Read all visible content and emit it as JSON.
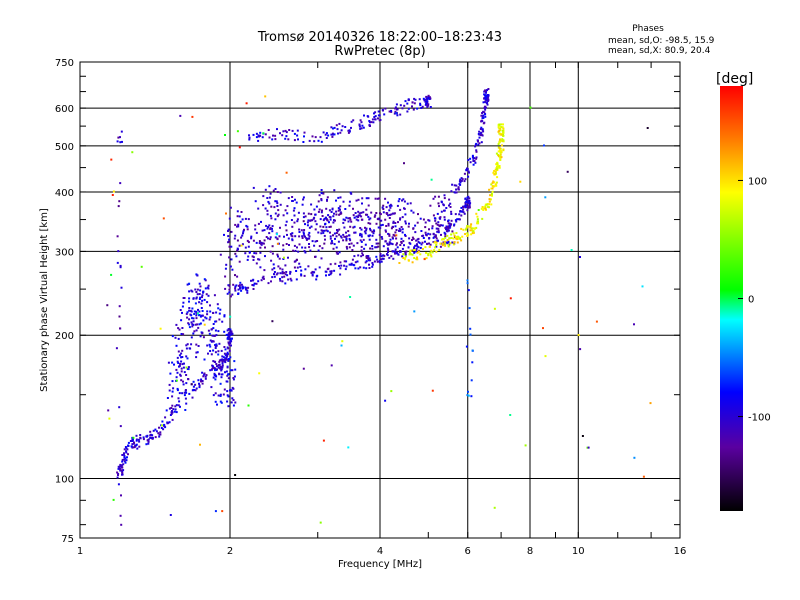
{
  "chart_data": {
    "type": "scatter",
    "title": "Tromsø 20140326 18:22:00–18:23:43",
    "subtitle": "RwPretec (8p)",
    "xlabel": "Frequency [MHz]",
    "ylabel": "Stationary phase Virtual Height [km]",
    "x_scale": "log",
    "y_scale": "log",
    "xlim": [
      1,
      16
    ],
    "ylim": [
      75,
      750
    ],
    "x_ticks": [
      1,
      2,
      4,
      6,
      8,
      10,
      16
    ],
    "x_tick_labels": [
      "1",
      "2",
      "4",
      "6",
      "8",
      "10",
      "16"
    ],
    "y_ticks": [
      75,
      100,
      200,
      300,
      400,
      500,
      600,
      750
    ],
    "y_tick_labels": [
      "75",
      "100",
      "200",
      "300",
      "400",
      "500",
      "600",
      "750"
    ],
    "grid": true,
    "stats": {
      "header": "Phases",
      "line1": "mean, sd,O: -98.5, 15.9",
      "line2": "mean, sd,X:  80.9, 20.4"
    },
    "colorbar": {
      "label": "[deg]",
      "range": [
        -180,
        180
      ],
      "ticks": [
        100,
        0,
        -100
      ],
      "tick_labels": [
        "100",
        "0",
        "-100"
      ]
    },
    "traces": [
      {
        "kind": "o_low",
        "phase": -100,
        "points": [
          [
            1.19,
            100
          ],
          [
            1.22,
            108
          ],
          [
            1.25,
            118
          ],
          [
            1.3,
            119
          ],
          [
            1.38,
            122
          ],
          [
            1.48,
            130
          ],
          [
            1.6,
            145
          ],
          [
            1.75,
            160
          ],
          [
            1.88,
            170
          ],
          [
            1.97,
            180
          ],
          [
            2.0,
            200
          ]
        ]
      },
      {
        "kind": "o_spread_low",
        "phase": -95,
        "points": [
          [
            1.55,
            145
          ],
          [
            1.6,
            175
          ],
          [
            1.65,
            200
          ],
          [
            1.7,
            230
          ],
          [
            1.75,
            240
          ],
          [
            1.82,
            210
          ],
          [
            1.9,
            190
          ],
          [
            1.95,
            160
          ]
        ]
      },
      {
        "kind": "o_f",
        "phase": -100,
        "points": [
          [
            1.97,
            247
          ],
          [
            2.1,
            250
          ],
          [
            2.3,
            258
          ],
          [
            2.6,
            264
          ],
          [
            3.0,
            270
          ],
          [
            3.4,
            278
          ],
          [
            3.8,
            285
          ],
          [
            4.2,
            295
          ],
          [
            4.6,
            305
          ],
          [
            5.0,
            318
          ],
          [
            5.4,
            335
          ],
          [
            5.8,
            360
          ],
          [
            6.0,
            380
          ]
        ]
      },
      {
        "kind": "o_spread_f",
        "phase": -110,
        "points": [
          [
            2.0,
            290
          ],
          [
            2.1,
            330
          ],
          [
            2.3,
            310
          ],
          [
            2.6,
            300
          ],
          [
            2.9,
            320
          ],
          [
            3.2,
            335
          ],
          [
            3.5,
            330
          ],
          [
            3.8,
            320
          ],
          [
            4.2,
            330
          ],
          [
            4.8,
            340
          ],
          [
            5.4,
            350
          ]
        ]
      },
      {
        "kind": "x_f",
        "phase": 90,
        "points": [
          [
            4.4,
            290
          ],
          [
            4.8,
            296
          ],
          [
            5.2,
            305
          ],
          [
            5.6,
            318
          ],
          [
            6.0,
            330
          ],
          [
            6.3,
            350
          ],
          [
            6.6,
            380
          ],
          [
            6.8,
            420
          ],
          [
            6.9,
            460
          ],
          [
            7.0,
            500
          ],
          [
            7.0,
            540
          ]
        ]
      },
      {
        "kind": "o_upper",
        "phase": -100,
        "points": [
          [
            2.15,
            515
          ],
          [
            2.5,
            530
          ],
          [
            3.0,
            520
          ],
          [
            3.4,
            545
          ],
          [
            3.8,
            565
          ],
          [
            4.2,
            590
          ],
          [
            4.6,
            610
          ],
          [
            5.0,
            620
          ]
        ]
      },
      {
        "kind": "o_cusp",
        "phase": -100,
        "points": [
          [
            5.6,
            400
          ],
          [
            5.9,
            430
          ],
          [
            6.2,
            470
          ],
          [
            6.4,
            540
          ],
          [
            6.5,
            600
          ],
          [
            6.55,
            640
          ]
        ]
      },
      {
        "kind": "o_spread_f2",
        "phase": -105,
        "points": [
          [
            2.3,
            370
          ],
          [
            2.5,
            350
          ],
          [
            2.8,
            340
          ],
          [
            3.1,
            360
          ],
          [
            3.4,
            355
          ],
          [
            3.8,
            345
          ],
          [
            4.3,
            345
          ]
        ]
      },
      {
        "kind": "noise_column_low",
        "phase": -110,
        "points": [
          [
            1.2,
            75
          ],
          [
            1.2,
            95
          ],
          [
            1.2,
            130
          ],
          [
            1.2,
            200
          ],
          [
            1.2,
            230
          ],
          [
            1.2,
            280
          ],
          [
            1.2,
            350
          ],
          [
            1.2,
            490
          ],
          [
            1.2,
            525
          ]
        ]
      },
      {
        "kind": "noise_column_high",
        "phase": -60,
        "points": [
          [
            6.05,
            260
          ],
          [
            6.1,
            230
          ],
          [
            6.0,
            200
          ],
          [
            6.1,
            180
          ],
          [
            6.05,
            150
          ]
        ]
      }
    ]
  }
}
